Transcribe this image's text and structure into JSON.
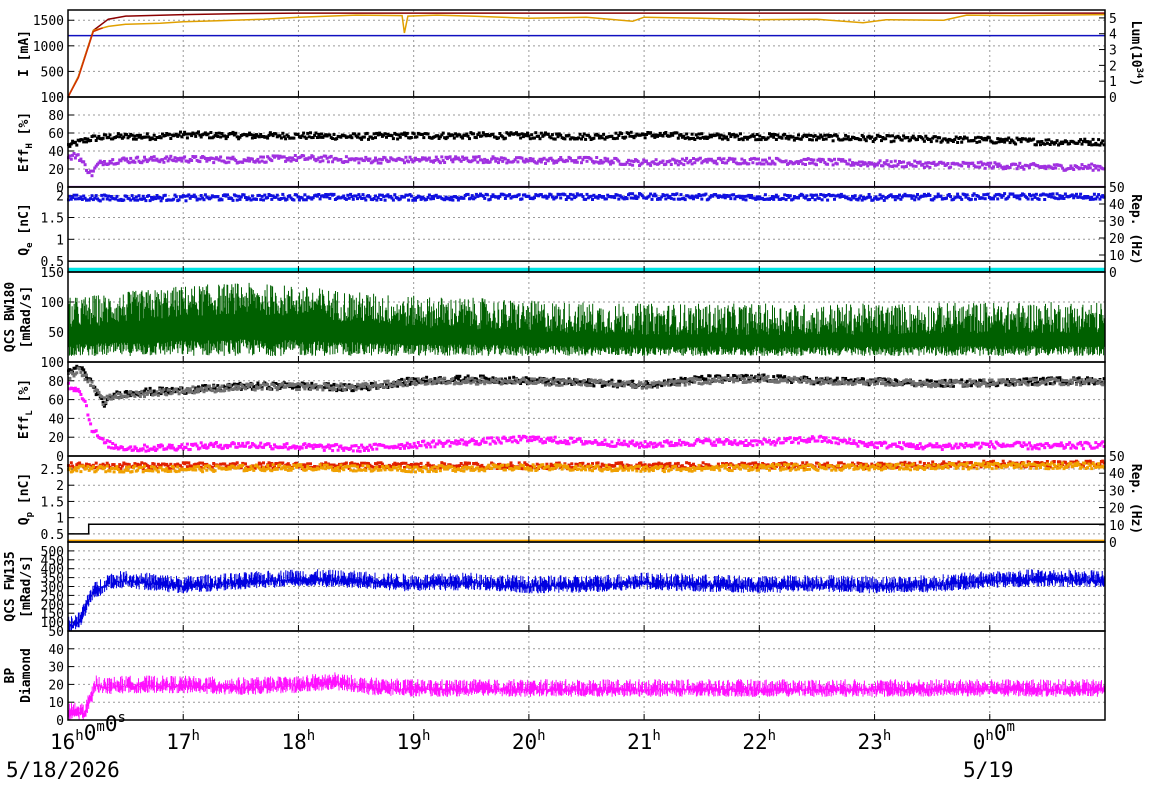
{
  "chart_data": {
    "type": "line",
    "time_axis": {
      "tick_labels": [
        "16h0m0s",
        "17h",
        "18h",
        "19h",
        "20h",
        "21h",
        "22h",
        "23h",
        "0h0m"
      ],
      "dates": [
        "5/18/2026",
        "5/19"
      ],
      "range_hours": [
        16.0,
        25.0
      ]
    },
    "panels": [
      {
        "id": "current",
        "ylabel": "I [mA]",
        "ylim": [
          0,
          1700
        ],
        "yticks": [
          0,
          500,
          1000,
          1500
        ],
        "right_axis": {
          "label": "Lum(10^34)",
          "ylim": [
            0,
            5.5
          ],
          "ticks": [
            0,
            1,
            2,
            3,
            4,
            5
          ]
        },
        "series": [
          {
            "name": "",
            "color": "#8b0000",
            "kind": "line",
            "x": [
              16.0,
              16.09,
              16.22,
              16.35,
              16.5,
              17.0,
              17.5,
              18.0,
              19.0,
              20.0,
              21.0,
              22.0,
              23.0,
              24.0,
              25.0
            ],
            "y": [
              0,
              400,
              1300,
              1520,
              1580,
              1610,
              1630,
              1640,
              1640,
              1640,
              1640,
              1640,
              1640,
              1640,
              1640
            ]
          },
          {
            "name": "",
            "color": "#e0a000",
            "kind": "line",
            "x": [
              16.0,
              16.09,
              16.22,
              16.35,
              16.5,
              16.8,
              17.0,
              17.3,
              17.7,
              18.0,
              18.5,
              18.9,
              18.92,
              18.95,
              19.2,
              19.5,
              20.0,
              20.5,
              20.9,
              21.0,
              21.5,
              22.0,
              22.5,
              22.9,
              23.1,
              23.6,
              23.8,
              24.2,
              24.6,
              25.0
            ],
            "y": [
              0,
              400,
              1300,
              1380,
              1420,
              1440,
              1470,
              1490,
              1520,
              1560,
              1600,
              1590,
              1250,
              1580,
              1600,
              1580,
              1540,
              1560,
              1480,
              1560,
              1540,
              1510,
              1520,
              1450,
              1510,
              1500,
              1600,
              1590,
              1600,
              1610
            ]
          },
          {
            "name": "",
            "color": "#1010c0",
            "kind": "line",
            "x": [
              16.0,
              25.0
            ],
            "y": [
              1200,
              1200
            ]
          },
          {
            "name": "",
            "color": "#d03000",
            "kind": "line",
            "x": [
              16.0,
              16.09,
              16.22,
              16.3
            ],
            "y": [
              0,
              380,
              1280,
              1350
            ]
          }
        ]
      },
      {
        "id": "effh",
        "ylabel": "EffH [%]",
        "ylim": [
          0,
          100
        ],
        "yticks": [
          0,
          20,
          40,
          60,
          80,
          100
        ],
        "series": [
          {
            "name": "",
            "color": "#000000",
            "kind": "scatter",
            "x": [
              16.0,
              16.1,
              16.2,
              16.4,
              16.7,
              17.0,
              17.5,
              18.0,
              18.5,
              19.0,
              19.5,
              20.0,
              20.5,
              21.0,
              21.5,
              22.0,
              22.5,
              23.0,
              23.5,
              24.0,
              24.5,
              25.0
            ],
            "y": [
              46,
              50,
              54,
              56,
              56,
              58,
              57,
              57,
              56,
              57,
              57,
              57,
              56,
              58,
              56,
              56,
              55,
              54,
              53,
              52,
              50,
              50
            ]
          },
          {
            "name": "",
            "color": "#a030e0",
            "kind": "scatter",
            "x": [
              16.0,
              16.08,
              16.15,
              16.2,
              16.25,
              16.3,
              16.5,
              17.0,
              17.5,
              18.0,
              18.5,
              19.0,
              19.5,
              20.0,
              20.5,
              21.0,
              21.5,
              22.0,
              22.5,
              23.0,
              23.5,
              24.0,
              24.5,
              25.0
            ],
            "y": [
              32,
              36,
              22,
              14,
              24,
              28,
              30,
              31,
              30,
              32,
              30,
              30,
              31,
              29,
              30,
              27,
              29,
              29,
              28,
              26,
              25,
              24,
              22,
              22
            ]
          },
          {
            "name": "",
            "color": "#a030e0",
            "kind": "line",
            "x": [
              16.0,
              25.0
            ],
            "y": [
              0.5,
              0.5
            ]
          }
        ]
      },
      {
        "id": "qe",
        "ylabel": "Qe [nC]",
        "ylim": [
          0.25,
          2.2
        ],
        "yticks": [
          0.5,
          1,
          1.5,
          2
        ],
        "right_axis": {
          "label": "Rep. (Hz)",
          "ylim": [
            0,
            50
          ],
          "ticks": [
            0,
            10,
            20,
            30,
            40,
            50
          ]
        },
        "series": [
          {
            "name": "",
            "color": "#1010e0",
            "kind": "scatter",
            "x": [
              16.0,
              17.0,
              18.0,
              19.0,
              20.0,
              21.0,
              22.0,
              23.0,
              24.0,
              25.0
            ],
            "y": [
              1.95,
              1.95,
              1.97,
              1.96,
              1.98,
              1.98,
              1.97,
              1.96,
              1.98,
              1.98
            ]
          },
          {
            "name": "",
            "color": "#000000",
            "kind": "line",
            "x": [
              16.0,
              25.0
            ],
            "y": [
              0.5,
              0.5
            ]
          },
          {
            "name": "",
            "color": "#00e5e5",
            "kind": "line",
            "x": [
              16.0,
              25.0
            ],
            "y": [
              0.3,
              0.3
            ]
          }
        ]
      },
      {
        "id": "bw180",
        "ylabel": "QCS BW180 [mRad/s]",
        "ylim": [
          0,
          150
        ],
        "yticks": [
          50,
          100,
          150
        ],
        "series": [
          {
            "name": "",
            "color": "#006000",
            "kind": "noise",
            "x": [
              16.0,
              16.5,
              17.0,
              17.5,
              18.0,
              18.5,
              19.0,
              19.5,
              20.0,
              21.0,
              22.0,
              23.0,
              24.0,
              25.0
            ],
            "y": [
              55,
              65,
              75,
              80,
              75,
              65,
              58,
              55,
              50,
              45,
              45,
              45,
              48,
              48
            ]
          }
        ]
      },
      {
        "id": "effl",
        "ylabel": "EffL [%]",
        "ylim": [
          0,
          100
        ],
        "yticks": [
          0,
          20,
          40,
          60,
          80,
          100
        ],
        "series": [
          {
            "name": "",
            "color": "#000000",
            "kind": "scatter",
            "x": [
              16.0,
              16.1,
              16.2,
              16.3,
              16.4,
              16.6,
              17.0,
              17.5,
              18.0,
              18.5,
              19.0,
              19.5,
              20.0,
              20.5,
              21.0,
              21.5,
              22.0,
              22.5,
              23.0,
              23.5,
              24.0,
              24.5,
              25.0
            ],
            "y": [
              88,
              95,
              78,
              55,
              65,
              68,
              70,
              74,
              75,
              72,
              80,
              82,
              80,
              78,
              76,
              82,
              83,
              80,
              79,
              77,
              78,
              80,
              80
            ]
          },
          {
            "name": "",
            "color": "#707070",
            "kind": "scatter",
            "x": [
              16.0,
              16.1,
              16.2,
              16.3,
              16.4,
              16.6,
              17.0,
              17.5,
              18.0,
              18.5,
              19.0,
              19.5,
              20.0,
              20.5,
              21.0,
              21.5,
              22.0,
              22.5,
              23.0,
              23.5,
              24.0,
              24.5,
              25.0
            ],
            "y": [
              85,
              92,
              76,
              58,
              64,
              66,
              70,
              73,
              74,
              73,
              79,
              80,
              79,
              78,
              75,
              80,
              82,
              80,
              79,
              77,
              78,
              79,
              79
            ]
          },
          {
            "name": "",
            "color": "#ff10ff",
            "kind": "scatter",
            "x": [
              16.0,
              16.1,
              16.15,
              16.2,
              16.3,
              16.4,
              16.6,
              17.0,
              17.5,
              18.0,
              18.5,
              19.0,
              19.5,
              20.0,
              20.5,
              21.0,
              21.5,
              22.0,
              22.5,
              23.0,
              23.5,
              24.0,
              24.5,
              25.0
            ],
            "y": [
              75,
              70,
              55,
              30,
              15,
              10,
              8,
              10,
              12,
              10,
              8,
              12,
              15,
              18,
              15,
              12,
              15,
              14,
              18,
              12,
              10,
              12,
              10,
              12
            ]
          }
        ]
      },
      {
        "id": "qp",
        "ylabel": "Qp [nC]",
        "ylim": [
          0.25,
          2.9
        ],
        "yticks": [
          0.5,
          1,
          1.5,
          2,
          2.5
        ],
        "right_axis": {
          "label": "Rep. (Hz)",
          "ylim": [
            0,
            50
          ],
          "ticks": [
            0,
            10,
            20,
            30,
            40,
            50
          ]
        },
        "series": [
          {
            "name": "",
            "color": "#e02000",
            "kind": "scatter",
            "x": [
              16.0,
              17.0,
              18.0,
              19.0,
              20.0,
              21.0,
              22.0,
              23.0,
              24.0,
              25.0
            ],
            "y": [
              2.6,
              2.6,
              2.6,
              2.6,
              2.6,
              2.6,
              2.6,
              2.6,
              2.65,
              2.65
            ]
          },
          {
            "name": "",
            "color": "#f0a000",
            "kind": "scatter",
            "x": [
              16.0,
              17.0,
              18.0,
              19.0,
              20.0,
              21.0,
              22.0,
              23.0,
              24.0,
              25.0
            ],
            "y": [
              2.5,
              2.5,
              2.55,
              2.5,
              2.55,
              2.5,
              2.55,
              2.55,
              2.6,
              2.6
            ]
          },
          {
            "name": "",
            "color": "#000000",
            "kind": "step",
            "x": [
              16.0,
              16.18,
              16.18,
              25.0
            ],
            "y": [
              0.5,
              0.5,
              0.8,
              0.8
            ]
          },
          {
            "name": "",
            "color": "#f0a000",
            "kind": "line",
            "x": [
              16.0,
              25.0
            ],
            "y": [
              0.3,
              0.3
            ]
          }
        ]
      },
      {
        "id": "fw135",
        "ylabel": "QCS FW135 [mRad/s]",
        "ylim": [
          50,
          550
        ],
        "yticks": [
          50,
          100,
          150,
          200,
          250,
          300,
          350,
          400,
          450,
          500
        ],
        "series": [
          {
            "name": "",
            "color": "#0000e0",
            "kind": "noise",
            "x": [
              16.0,
              16.1,
              16.2,
              16.35,
              16.5,
              17.0,
              17.5,
              18.0,
              18.5,
              19.0,
              19.5,
              20.0,
              20.5,
              21.0,
              21.5,
              22.0,
              22.5,
              23.0,
              23.5,
              24.0,
              24.5,
              25.0
            ],
            "y": [
              70,
              100,
              250,
              320,
              330,
              300,
              320,
              340,
              330,
              310,
              320,
              300,
              305,
              320,
              310,
              300,
              310,
              300,
              305,
              330,
              340,
              330
            ]
          }
        ]
      },
      {
        "id": "bp",
        "ylabel": "BP Diamond",
        "ylim": [
          0,
          50
        ],
        "yticks": [
          0,
          10,
          20,
          30,
          40
        ],
        "series": [
          {
            "name": "",
            "color": "#ff10ff",
            "kind": "noise",
            "x": [
              16.0,
              16.15,
              16.25,
              16.3,
              16.5,
              17.0,
              17.5,
              18.0,
              18.3,
              18.6,
              19.0,
              20.0,
              21.0,
              22.0,
              23.0,
              24.0,
              25.0
            ],
            "y": [
              4,
              4,
              20,
              18,
              19,
              19,
              18,
              19,
              21,
              18,
              17,
              17,
              17,
              17,
              17,
              17,
              17
            ]
          }
        ]
      }
    ]
  }
}
